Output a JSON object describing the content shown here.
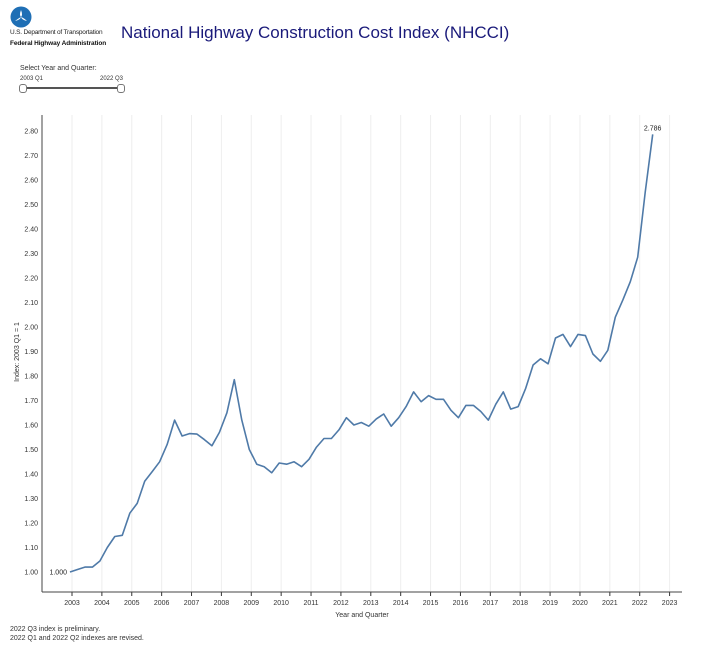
{
  "header": {
    "agency_line1": "U.S. Department of Transportation",
    "agency_line2": "Federal Highway Administration",
    "title": "National Highway Construction Cost Index (NHCCI)"
  },
  "slider": {
    "label": "Select Year and Quarter:",
    "min_label": "2003 Q1",
    "max_label": "2022 Q3"
  },
  "footnotes": [
    "2022 Q3 index is preliminary.",
    "2022 Q1 and 2022 Q2 indexes are revised."
  ],
  "colors": {
    "line": "#4f7aa8",
    "title": "#1a1a7a"
  },
  "chart_data": {
    "type": "line",
    "title": "",
    "xlabel": "Year and Quarter",
    "ylabel": "Index: 2003 Q1 = 1",
    "ylim": [
      0.92,
      2.87
    ],
    "yticks": [
      "1.00",
      "1.10",
      "1.20",
      "1.30",
      "1.40",
      "1.50",
      "1.60",
      "1.70",
      "1.80",
      "1.90",
      "2.00",
      "2.10",
      "2.20",
      "2.30",
      "2.40",
      "2.50",
      "2.60",
      "2.70",
      "2.80"
    ],
    "xticks": [
      "2003",
      "2004",
      "2005",
      "2006",
      "2007",
      "2008",
      "2009",
      "2010",
      "2011",
      "2012",
      "2013",
      "2014",
      "2015",
      "2016",
      "2017",
      "2018",
      "2019",
      "2020",
      "2021",
      "2022",
      "2023"
    ],
    "grid": "vertical",
    "start": "2003 Q1",
    "end": "2022 Q3",
    "start_label": "1.000",
    "end_label": "2.786",
    "values": [
      1.0,
      1.01,
      1.02,
      1.02,
      1.045,
      1.1,
      1.145,
      1.15,
      1.24,
      1.28,
      1.37,
      1.41,
      1.45,
      1.52,
      1.62,
      1.555,
      1.565,
      1.563,
      1.54,
      1.515,
      1.57,
      1.65,
      1.785,
      1.62,
      1.5,
      1.44,
      1.43,
      1.405,
      1.445,
      1.44,
      1.45,
      1.43,
      1.46,
      1.51,
      1.545,
      1.545,
      1.58,
      1.63,
      1.6,
      1.61,
      1.595,
      1.625,
      1.645,
      1.595,
      1.63,
      1.675,
      1.735,
      1.695,
      1.72,
      1.705,
      1.705,
      1.66,
      1.63,
      1.68,
      1.68,
      1.655,
      1.62,
      1.685,
      1.735,
      1.665,
      1.675,
      1.75,
      1.845,
      1.87,
      1.85,
      1.955,
      1.97,
      1.92,
      1.97,
      1.965,
      1.89,
      1.86,
      1.905,
      2.04,
      2.11,
      2.185,
      2.285,
      2.55,
      2.786
    ]
  }
}
